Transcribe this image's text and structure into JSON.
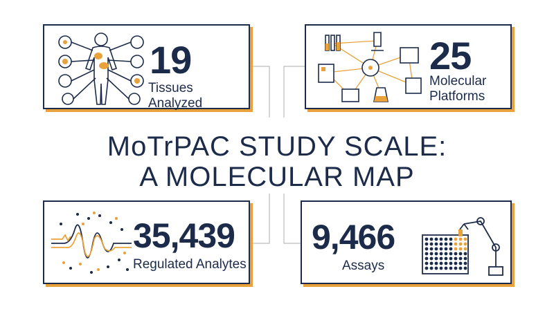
{
  "title": {
    "line1": "MoTrPAC STUDY SCALE:",
    "line2": "A MOLECULAR MAP"
  },
  "stats": {
    "tissues": {
      "value": "19",
      "label": "Tissues Analyzed",
      "icon": "human-body-organs-icon"
    },
    "platforms": {
      "value": "25",
      "label_line1": "Molecular",
      "label_line2": "Platforms",
      "icon": "lab-equipment-network-icon"
    },
    "analytes": {
      "value": "35,439",
      "label": "Regulated Analytes",
      "icon": "waveform-scatter-icon"
    },
    "assays": {
      "value": "9,466",
      "label": "Assays",
      "icon": "robotic-arm-plate-icon"
    }
  },
  "colors": {
    "navy": "#1c2b4a",
    "accent": "#e9a23b",
    "background": "#ffffff"
  }
}
